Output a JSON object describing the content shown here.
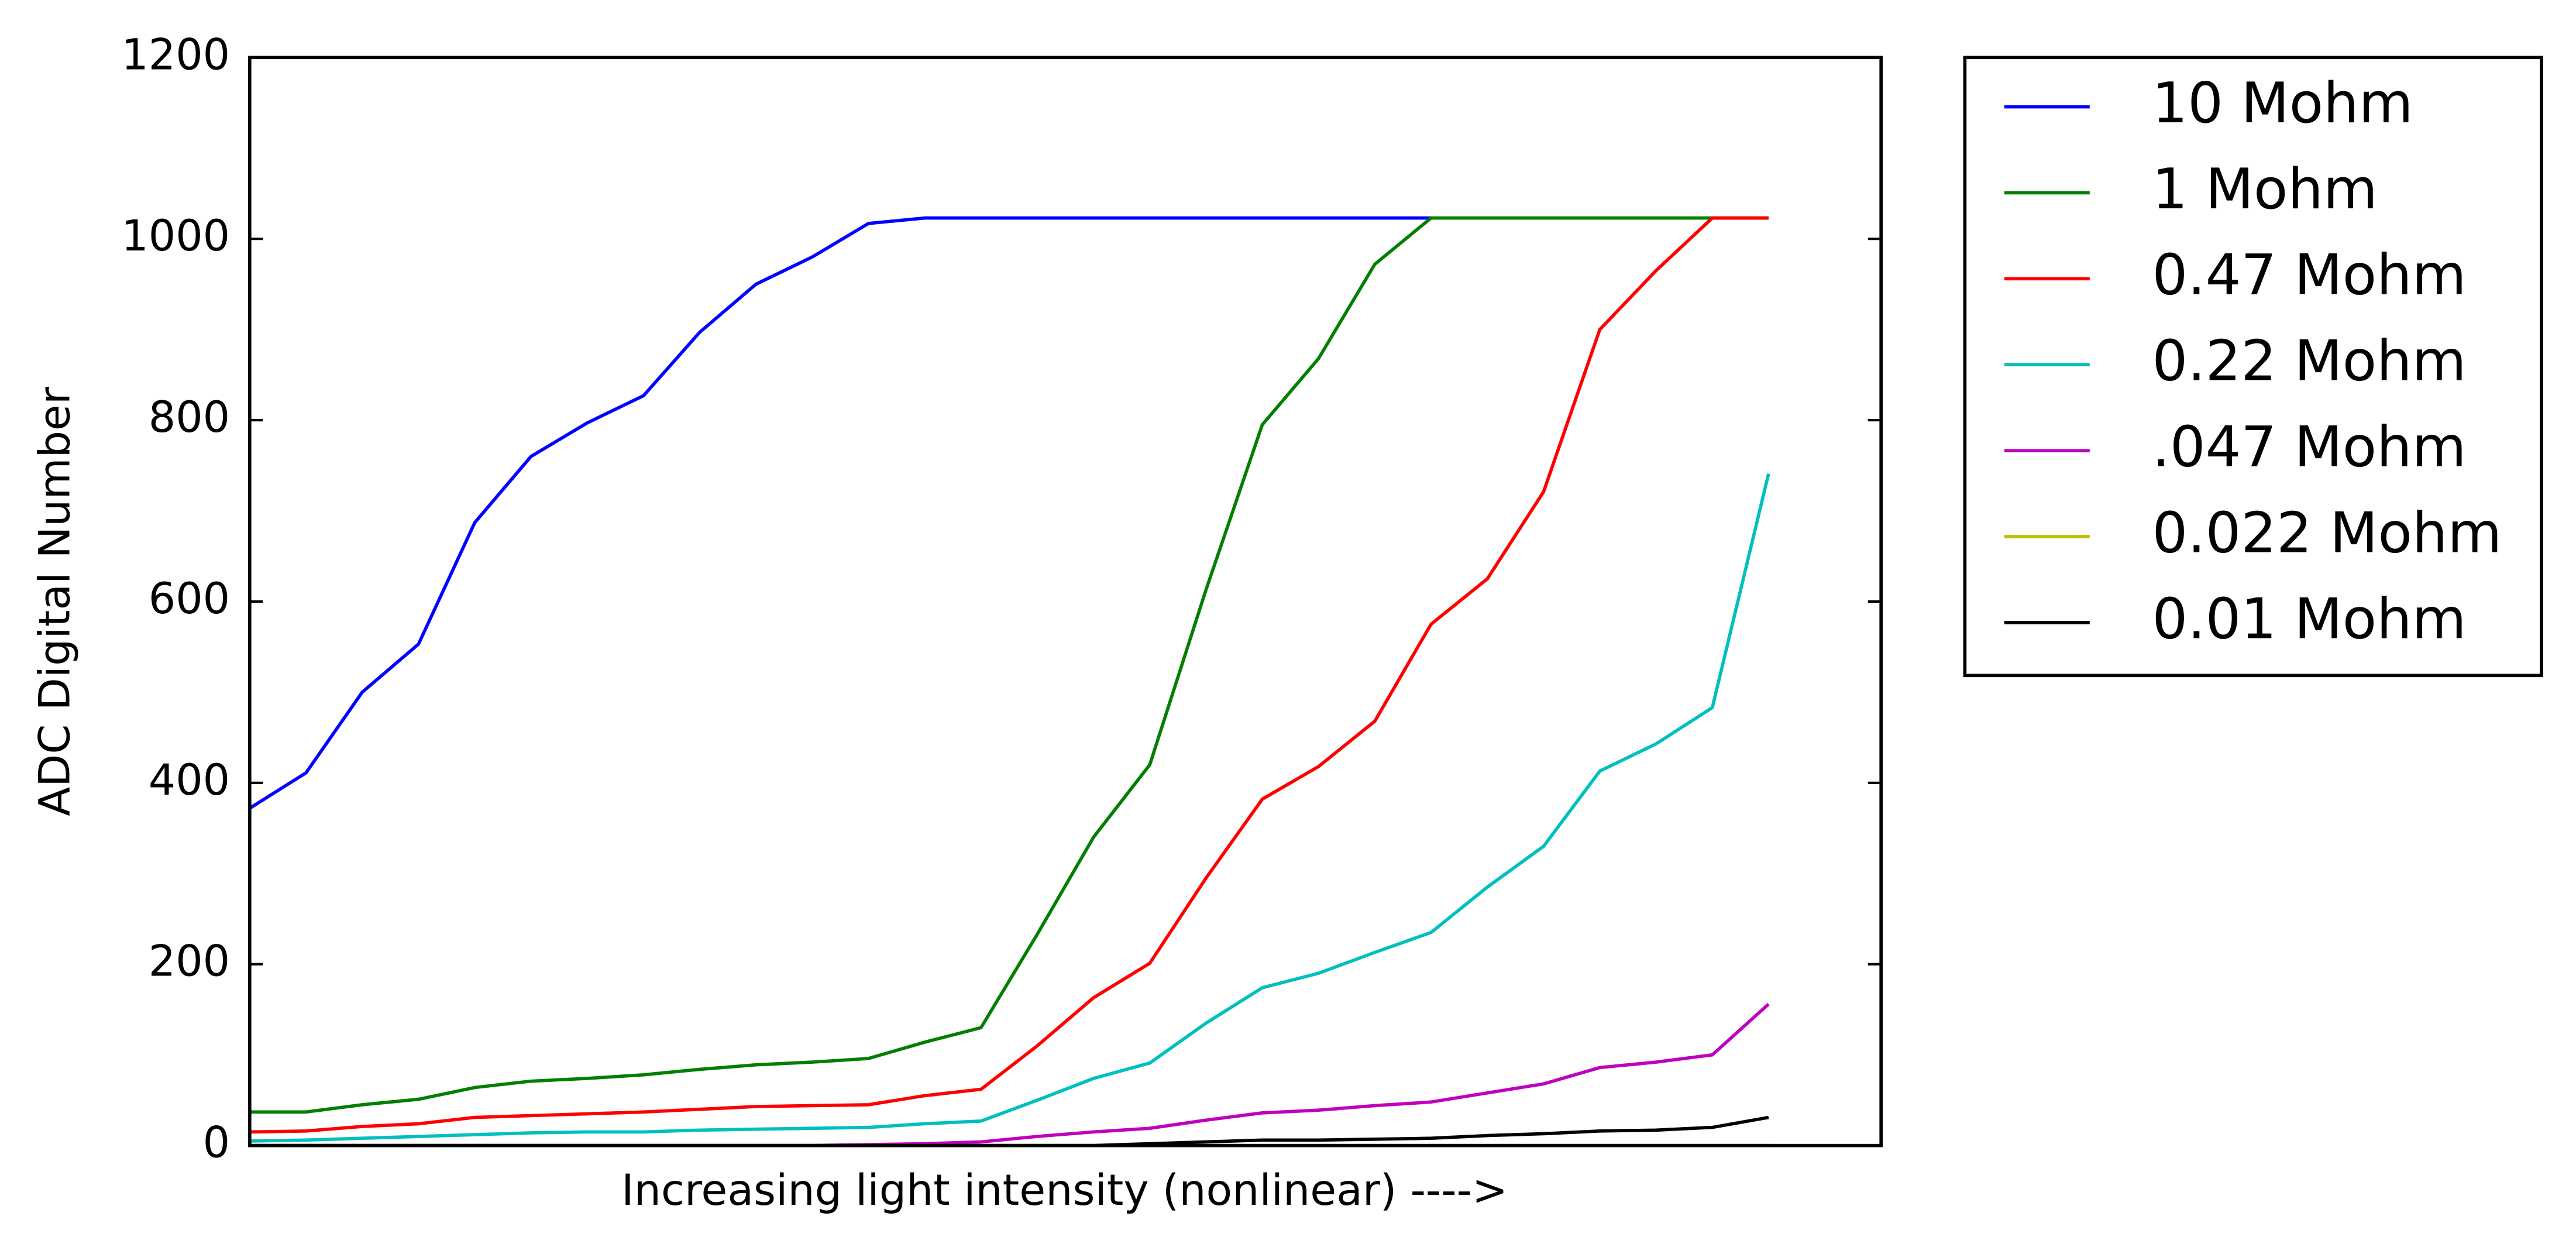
{
  "chart_data": {
    "type": "line",
    "xlabel": "Increasing light intensity (nonlinear) ---->",
    "ylabel": "ADC Digital Number",
    "x": [
      0,
      1,
      2,
      3,
      4,
      5,
      6,
      7,
      8,
      9,
      10,
      11,
      12,
      13,
      14,
      15,
      16,
      17,
      18,
      19,
      20,
      21,
      22,
      23,
      24,
      25,
      26,
      27
    ],
    "xlim": [
      0,
      29
    ],
    "ylim": [
      0,
      1200
    ],
    "yticks": [
      0,
      200,
      400,
      600,
      800,
      1000,
      1200
    ],
    "legend": "outside-upper-right",
    "series": [
      {
        "name": "10 Mohm",
        "color": "#0000ff",
        "values": [
          372,
          411,
          500,
          553,
          687,
          760,
          797,
          827,
          897,
          950,
          980,
          1017,
          1023,
          1023,
          1023,
          1023,
          1023,
          1023,
          1023,
          1023,
          1023,
          1023,
          null,
          null,
          null,
          null,
          null,
          null
        ]
      },
      {
        "name": "1 Mohm",
        "color": "#007f00",
        "values": [
          37,
          37,
          45,
          51,
          64,
          71,
          74,
          78,
          84,
          89,
          92,
          96,
          114,
          130,
          233,
          340,
          420,
          613,
          795,
          868,
          972,
          1023,
          1023,
          1023,
          1023,
          1023,
          1023,
          1023
        ]
      },
      {
        "name": "0.47 Mohm",
        "color": "#ff0000",
        "values": [
          15,
          16,
          21,
          24,
          31,
          33,
          35,
          37,
          40,
          43,
          44,
          45,
          55,
          62,
          110,
          163,
          201,
          295,
          382,
          418,
          468,
          575,
          625,
          721,
          900,
          965,
          1023,
          1023
        ]
      },
      {
        "name": "0.22 Mohm",
        "color": "#00bfbf",
        "values": [
          5,
          6,
          8,
          10,
          12,
          14,
          15,
          15,
          17,
          18,
          19,
          20,
          24,
          27,
          50,
          74,
          91,
          135,
          174,
          190,
          213,
          235,
          285,
          330,
          413,
          443,
          483,
          741
        ]
      },
      {
        "name": ".047 Mohm",
        "color": "#bf00bf",
        "values": [
          0,
          0,
          0,
          0,
          0,
          0,
          0,
          0,
          0,
          0,
          0,
          1,
          2,
          4,
          10,
          15,
          19,
          28,
          36,
          39,
          44,
          48,
          58,
          68,
          86,
          92,
          100,
          156
        ]
      },
      {
        "name": "0.022 Mohm",
        "color": "#bfbf00",
        "values": [
          0,
          0,
          0,
          0,
          0,
          0,
          0,
          0,
          0,
          0,
          0,
          0,
          0,
          0,
          0,
          0,
          0,
          0,
          0,
          0,
          0,
          0,
          0,
          0,
          0,
          0,
          0,
          0
        ]
      },
      {
        "name": "0.01 Mohm",
        "color": "#000000",
        "values": [
          0,
          0,
          0,
          0,
          0,
          0,
          0,
          0,
          0,
          0,
          0,
          0,
          0,
          0,
          0,
          0,
          2,
          4,
          6,
          6,
          7,
          8,
          11,
          13,
          16,
          17,
          20,
          31
        ]
      }
    ]
  }
}
